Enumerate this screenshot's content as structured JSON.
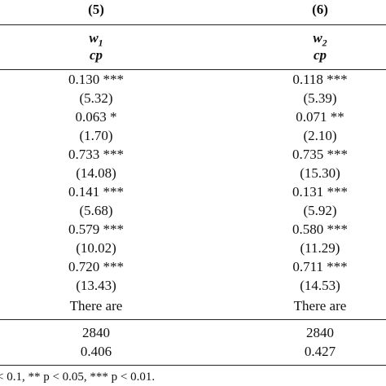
{
  "table": {
    "columns": [
      "(5)",
      "(6)"
    ],
    "dependent": [
      {
        "var": "w",
        "sub": "1"
      },
      {
        "var": "w",
        "sub": "2"
      }
    ],
    "method": [
      "cp",
      "cp"
    ],
    "rows": [
      [
        "0.130 ***",
        "0.118 ***"
      ],
      [
        "(5.32)",
        "(5.39)"
      ],
      [
        "0.063 *",
        "0.071 **"
      ],
      [
        "(1.70)",
        "(2.10)"
      ],
      [
        "0.733 ***",
        "0.735 ***"
      ],
      [
        "(14.08)",
        "(15.30)"
      ],
      [
        "0.141 ***",
        "0.131 ***"
      ],
      [
        "(5.68)",
        "(5.92)"
      ],
      [
        "0.579 ***",
        "0.580 ***"
      ],
      [
        "(10.02)",
        "(11.29)"
      ],
      [
        "0.720 ***",
        "0.711 ***"
      ],
      [
        "(13.43)",
        "(14.53)"
      ],
      [
        "There are",
        "There are"
      ]
    ],
    "stats": [
      [
        "2840",
        "2840"
      ],
      [
        "0.406",
        "0.427"
      ]
    ],
    "footnote": "< 0.1, ** p < 0.05, *** p < 0.01."
  }
}
